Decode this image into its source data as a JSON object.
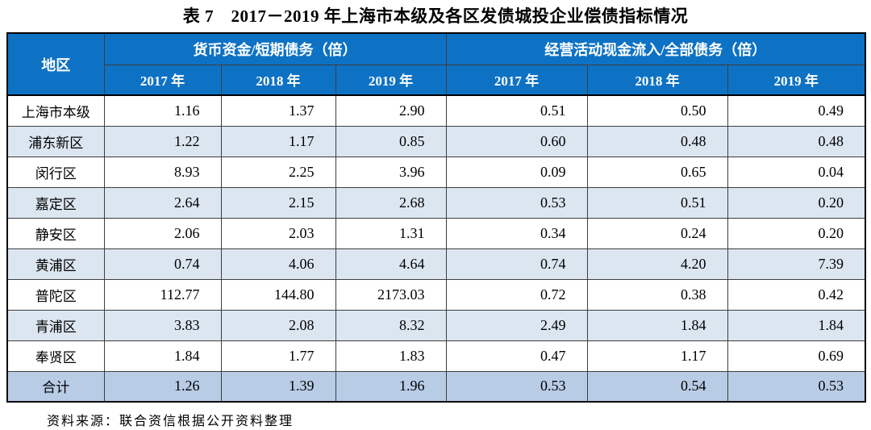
{
  "title": "表 7　2017－2019 年上海市本级及各区发债城投企业偿债指标情况",
  "table": {
    "region_header": "地区",
    "group1_header": "货币资金/短期债务（倍）",
    "group2_header": "经营活动现金流入/全部债务（倍）",
    "year_headers": [
      "2017 年",
      "2018 年",
      "2019 年",
      "2017 年",
      "2018 年",
      "2019 年"
    ],
    "rows": [
      {
        "region": "上海市本级",
        "values": [
          "1.16",
          "1.37",
          "2.90",
          "0.51",
          "0.50",
          "0.49"
        ]
      },
      {
        "region": "浦东新区",
        "values": [
          "1.22",
          "1.17",
          "0.85",
          "0.60",
          "0.48",
          "0.48"
        ]
      },
      {
        "region": "闵行区",
        "values": [
          "8.93",
          "2.25",
          "3.96",
          "0.09",
          "0.65",
          "0.04"
        ]
      },
      {
        "region": "嘉定区",
        "values": [
          "2.64",
          "2.15",
          "2.68",
          "0.53",
          "0.51",
          "0.20"
        ]
      },
      {
        "region": "静安区",
        "values": [
          "2.06",
          "2.03",
          "1.31",
          "0.34",
          "0.24",
          "0.20"
        ]
      },
      {
        "region": "黄浦区",
        "values": [
          "0.74",
          "4.06",
          "4.64",
          "0.74",
          "4.20",
          "7.39"
        ]
      },
      {
        "region": "普陀区",
        "values": [
          "112.77",
          "144.80",
          "2173.03",
          "0.72",
          "0.38",
          "0.42"
        ]
      },
      {
        "region": "青浦区",
        "values": [
          "3.83",
          "2.08",
          "8.32",
          "2.49",
          "1.84",
          "1.84"
        ]
      },
      {
        "region": "奉贤区",
        "values": [
          "1.84",
          "1.77",
          "1.83",
          "0.47",
          "1.17",
          "0.69"
        ]
      }
    ],
    "total_row": {
      "region": "合计",
      "values": [
        "1.26",
        "1.39",
        "1.96",
        "0.53",
        "0.54",
        "0.53"
      ]
    }
  },
  "source_note": "资料来源：联合资信根据公开资料整理",
  "colors": {
    "header_bg": "#0e72c4",
    "header_text": "#ffffff",
    "stripe_bg": "#dce6f1",
    "total_bg": "#b9cce6",
    "border": "#000000"
  },
  "chart_data": {
    "type": "table",
    "title": "表 7　2017－2019 年上海市本级及各区发债城投企业偿债指标情况",
    "column_groups": [
      "货币资金/短期债务（倍）",
      "经营活动现金流入/全部债务（倍）"
    ],
    "columns": [
      "地区",
      "货币资金/短期债务 2017年",
      "货币资金/短期债务 2018年",
      "货币资金/短期债务 2019年",
      "经营活动现金流入/全部债务 2017年",
      "经营活动现金流入/全部债务 2018年",
      "经营活动现金流入/全部债务 2019年"
    ],
    "rows": [
      [
        "上海市本级",
        1.16,
        1.37,
        2.9,
        0.51,
        0.5,
        0.49
      ],
      [
        "浦东新区",
        1.22,
        1.17,
        0.85,
        0.6,
        0.48,
        0.48
      ],
      [
        "闵行区",
        8.93,
        2.25,
        3.96,
        0.09,
        0.65,
        0.04
      ],
      [
        "嘉定区",
        2.64,
        2.15,
        2.68,
        0.53,
        0.51,
        0.2
      ],
      [
        "静安区",
        2.06,
        2.03,
        1.31,
        0.34,
        0.24,
        0.2
      ],
      [
        "黄浦区",
        0.74,
        4.06,
        4.64,
        0.74,
        4.2,
        7.39
      ],
      [
        "普陀区",
        112.77,
        144.8,
        2173.03,
        0.72,
        0.38,
        0.42
      ],
      [
        "青浦区",
        3.83,
        2.08,
        8.32,
        2.49,
        1.84,
        1.84
      ],
      [
        "奉贤区",
        1.84,
        1.77,
        1.83,
        0.47,
        1.17,
        0.69
      ],
      [
        "合计",
        1.26,
        1.39,
        1.96,
        0.53,
        0.54,
        0.53
      ]
    ],
    "source": "资料来源：联合资信根据公开资料整理"
  }
}
